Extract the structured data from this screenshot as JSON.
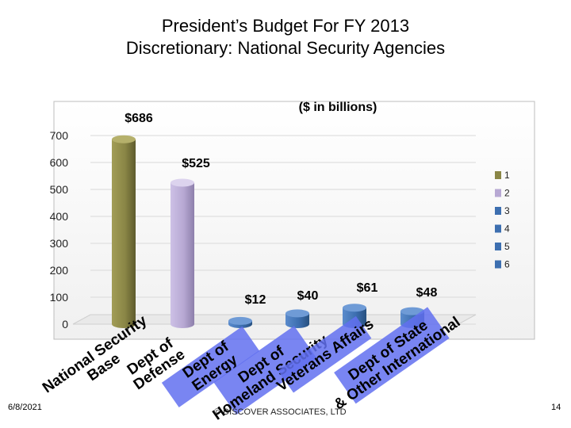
{
  "slide": {
    "title_line1": "President’s Budget For FY 2013",
    "title_line2": "Discretionary: National Security Agencies",
    "date": "6/8/2021",
    "page_number": "14",
    "copyright": "© DISCOVER ASSOCIATES, LTD"
  },
  "chart_data": {
    "type": "bar",
    "unit_note": "($ in billions)",
    "categories": [
      "National Security Base",
      "Dept of Defense",
      "Dept of Energy",
      "Dept of Homeland Security",
      "Veterans Affairs",
      "Dept of State & Other International"
    ],
    "values": [
      686,
      525,
      12,
      40,
      61,
      48
    ],
    "value_labels": [
      "$686",
      "$525",
      "$12",
      "$40",
      "$61",
      "$48"
    ],
    "legend": [
      "1",
      "2",
      "3",
      "4",
      "5",
      "6"
    ],
    "legend_position": "right",
    "ylim": [
      0,
      700
    ],
    "yticks": [
      0,
      100,
      200,
      300,
      400,
      500,
      600,
      700
    ],
    "grid": true,
    "colors": {
      "bar1": "#8a8646",
      "bar2": "#b7a8d3",
      "bar3": "#3d6fb0",
      "bar4": "#3d6fb0",
      "bar5": "#3d6fb0",
      "bar6": "#3d6fb0",
      "category_label": "#000000",
      "category_box": "#6270f0"
    }
  }
}
